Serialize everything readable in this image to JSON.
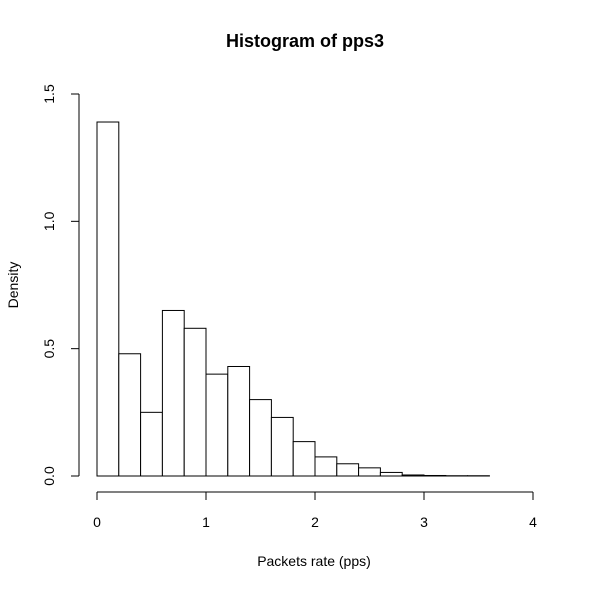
{
  "chart_data": {
    "type": "bar",
    "title": "Histogram of pps3",
    "xlabel": "Packets rate (pps)",
    "ylabel": "Density",
    "xlim": [
      0,
      4
    ],
    "ylim": [
      0,
      1.5
    ],
    "x_ticks": [
      "0",
      "1",
      "2",
      "3",
      "4"
    ],
    "y_ticks": [
      "0.0",
      "0.5",
      "1.0",
      "1.5"
    ],
    "grid": false,
    "legend": "none",
    "bin_width": 0.2,
    "bin_edges": [
      0,
      0.2,
      0.4,
      0.6,
      0.8,
      1.0,
      1.2,
      1.4,
      1.6,
      1.8,
      2.0,
      2.2,
      2.4,
      2.6,
      2.8,
      3.0,
      3.2,
      3.4,
      3.6
    ],
    "values": [
      1.39,
      0.48,
      0.25,
      0.65,
      0.58,
      0.4,
      0.43,
      0.3,
      0.23,
      0.135,
      0.075,
      0.048,
      0.032,
      0.014,
      0.004,
      0.002,
      0.001,
      0.001
    ]
  }
}
